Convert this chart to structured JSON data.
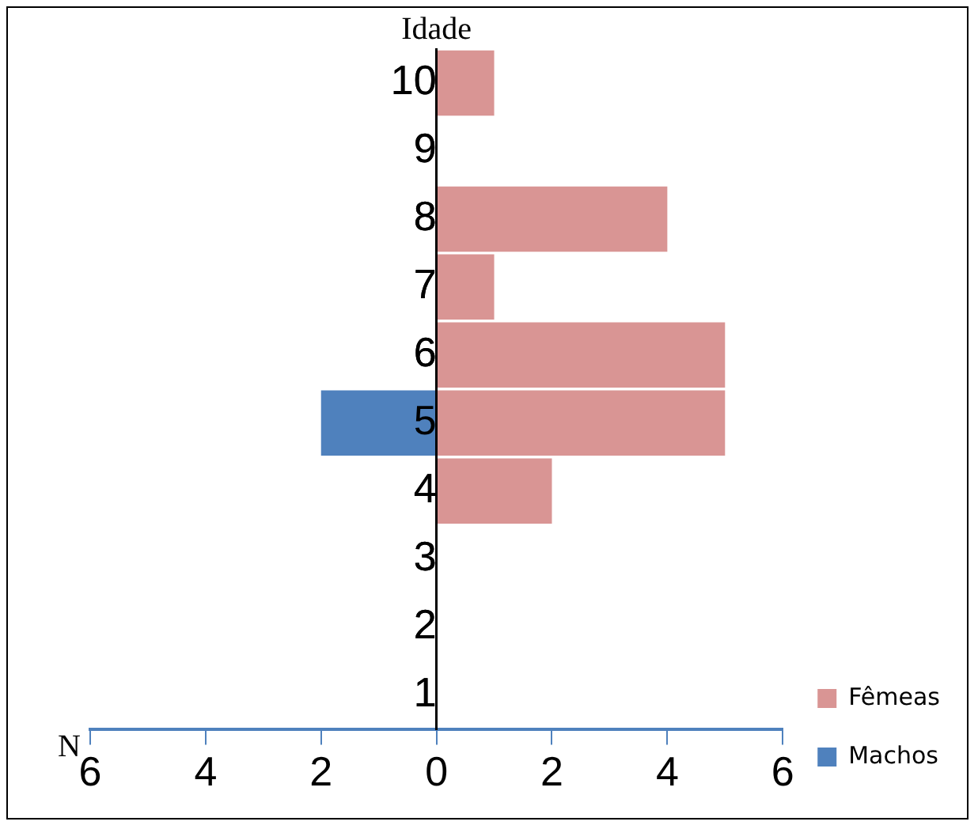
{
  "chart_data": {
    "type": "bar",
    "orientation": "horizontal",
    "stacked": true,
    "xlabel": "N",
    "ylabel": "Idade",
    "categories": [
      "10",
      "9",
      "8",
      "7",
      "6",
      "5",
      "4",
      "3",
      "2",
      "1"
    ],
    "series": [
      {
        "name": "Fêmeas",
        "color": "#d99594",
        "values": [
          1,
          0,
          4,
          1,
          5,
          5,
          2,
          0,
          0,
          0
        ]
      },
      {
        "name": "Machos",
        "color": "#4f81bd",
        "values": [
          0,
          0,
          0,
          0,
          0,
          -2,
          0,
          0,
          0,
          0
        ]
      }
    ],
    "xlim": [
      -6,
      6
    ],
    "xticks": [
      {
        "value": -6,
        "label": "6"
      },
      {
        "value": -4,
        "label": "4"
      },
      {
        "value": -2,
        "label": "2"
      },
      0,
      2,
      4,
      6
    ],
    "grid": false,
    "legend": "bottom right"
  }
}
